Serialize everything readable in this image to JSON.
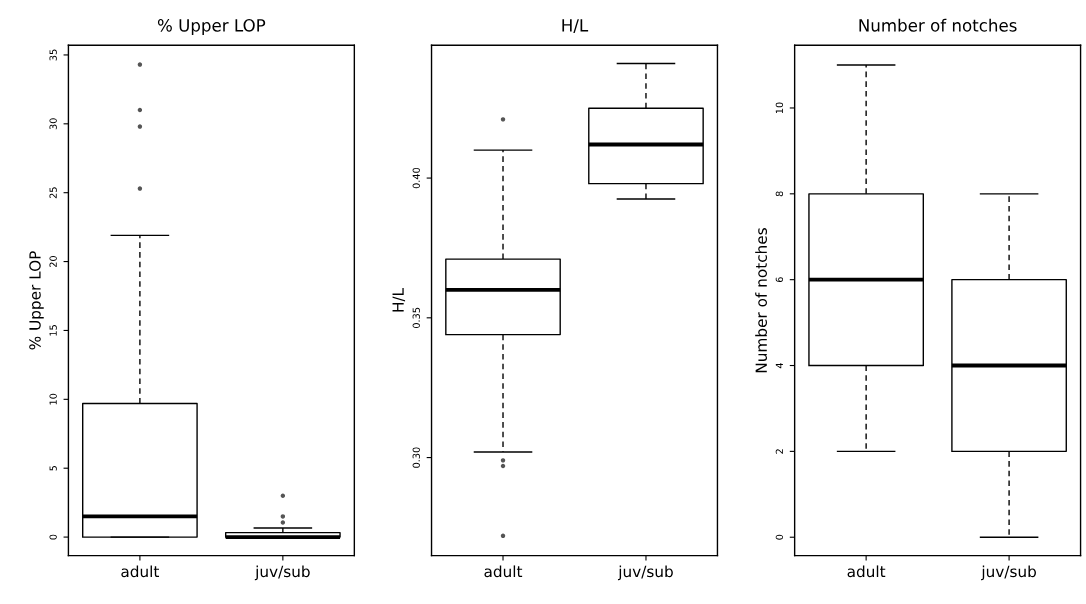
{
  "chart_data": [
    {
      "type": "box",
      "title": "% Upper LOP",
      "ylabel": "% Upper LOP",
      "categories": [
        "adult",
        "juv/sub"
      ],
      "ylim": [
        -1.35,
        35.7
      ],
      "yticks": [
        0,
        5,
        10,
        15,
        20,
        25,
        30,
        35
      ],
      "grid": false,
      "boxes": [
        {
          "low": 0,
          "q1": 0,
          "median": 1.5,
          "q3": 9.7,
          "high": 21.9,
          "outliers": [
            34.3,
            31.0,
            29.8,
            25.3
          ]
        },
        {
          "low": 0,
          "q1": 0,
          "median": 0,
          "q3": 0.32,
          "high": 0.66,
          "outliers": [
            3.0,
            1.5,
            1.06
          ]
        }
      ]
    },
    {
      "type": "box",
      "title": "H/L",
      "ylabel": "H/L",
      "categories": [
        "adult",
        "juv/sub"
      ],
      "ylim": [
        0.2649,
        0.4475
      ],
      "yticks": [
        {
          "value": 0.3,
          "label": "0.30"
        },
        {
          "value": 0.35,
          "label": "0.35"
        },
        {
          "value": 0.4,
          "label": "0.40"
        }
      ],
      "grid": false,
      "boxes": [
        {
          "low": 0.302,
          "q1": 0.344,
          "median": 0.36,
          "q3": 0.371,
          "high": 0.41,
          "outliers": [
            0.421,
            0.299,
            0.297,
            0.272
          ]
        },
        {
          "low": 0.3925,
          "q1": 0.398,
          "median": 0.412,
          "q3": 0.425,
          "high": 0.441
        }
      ]
    },
    {
      "type": "box",
      "title": "Number of notches",
      "ylabel": "Number of notches",
      "categories": [
        "adult",
        "juv/sub"
      ],
      "ylim": [
        -0.43,
        11.46
      ],
      "yticks": [
        0,
        2,
        4,
        6,
        8,
        10
      ],
      "grid": false,
      "boxes": [
        {
          "low": 2,
          "q1": 4,
          "median": 6,
          "q3": 8,
          "high": 11
        },
        {
          "low": 0,
          "q1": 2,
          "median": 4,
          "q3": 6,
          "high": 8
        }
      ]
    }
  ]
}
